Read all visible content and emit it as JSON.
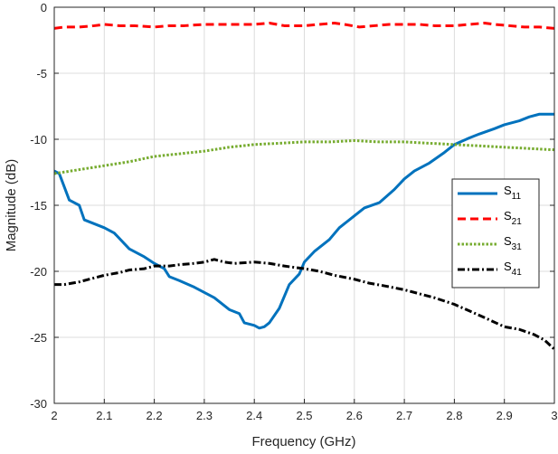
{
  "chart_data": {
    "type": "line",
    "title": "",
    "xlabel": "Frequency (GHz)",
    "ylabel": "Magnitude (dB)",
    "xlim": [
      2,
      3
    ],
    "ylim": [
      -30,
      0
    ],
    "xticks": [
      2,
      2.1,
      2.2,
      2.3,
      2.4,
      2.5,
      2.6,
      2.7,
      2.8,
      2.9,
      3
    ],
    "xtick_labels": [
      "2",
      "2.1",
      "2.2",
      "2.3",
      "2.4",
      "2.5",
      "2.6",
      "2.7",
      "2.8",
      "2.9",
      "3"
    ],
    "yticks": [
      0,
      -5,
      -10,
      -15,
      -20,
      -25,
      -30
    ],
    "ytick_labels": [
      "0",
      "-5",
      "-10",
      "-15",
      "-20",
      "-25",
      "-30"
    ],
    "grid": true,
    "legend_position": "right-middle",
    "series": [
      {
        "name": "S11",
        "label_main": "S",
        "label_sub": "11",
        "color": "#0072BD",
        "dash": "solid",
        "x": [
          2.0,
          2.01,
          2.03,
          2.05,
          2.06,
          2.1,
          2.12,
          2.15,
          2.18,
          2.2,
          2.22,
          2.23,
          2.25,
          2.28,
          2.32,
          2.35,
          2.37,
          2.38,
          2.4,
          2.41,
          2.42,
          2.43,
          2.45,
          2.47,
          2.49,
          2.5,
          2.52,
          2.55,
          2.57,
          2.6,
          2.62,
          2.65,
          2.68,
          2.7,
          2.72,
          2.75,
          2.78,
          2.8,
          2.83,
          2.85,
          2.88,
          2.9,
          2.93,
          2.95,
          2.97,
          3.0
        ],
        "y": [
          -12.4,
          -12.6,
          -14.6,
          -15.0,
          -16.1,
          -16.7,
          -17.1,
          -18.3,
          -18.9,
          -19.4,
          -19.8,
          -20.4,
          -20.7,
          -21.2,
          -22.0,
          -22.9,
          -23.2,
          -23.9,
          -24.1,
          -24.3,
          -24.2,
          -23.9,
          -22.8,
          -21.0,
          -20.2,
          -19.3,
          -18.5,
          -17.6,
          -16.7,
          -15.8,
          -15.2,
          -14.8,
          -13.8,
          -13.0,
          -12.4,
          -11.8,
          -11.0,
          -10.4,
          -9.9,
          -9.6,
          -9.2,
          -8.9,
          -8.6,
          -8.3,
          -8.1,
          -8.1
        ]
      },
      {
        "name": "S21",
        "label_main": "S",
        "label_sub": "21",
        "color": "#FF0000",
        "dash": "dashed",
        "x": [
          2.0,
          2.02,
          2.05,
          2.08,
          2.1,
          2.13,
          2.16,
          2.2,
          2.23,
          2.26,
          2.3,
          2.33,
          2.36,
          2.4,
          2.43,
          2.46,
          2.5,
          2.53,
          2.56,
          2.58,
          2.61,
          2.64,
          2.67,
          2.7,
          2.73,
          2.76,
          2.8,
          2.83,
          2.86,
          2.88,
          2.91,
          2.94,
          2.97,
          3.0
        ],
        "y": [
          -1.6,
          -1.5,
          -1.5,
          -1.4,
          -1.3,
          -1.4,
          -1.4,
          -1.5,
          -1.4,
          -1.4,
          -1.3,
          -1.3,
          -1.3,
          -1.3,
          -1.2,
          -1.4,
          -1.4,
          -1.3,
          -1.2,
          -1.3,
          -1.5,
          -1.4,
          -1.3,
          -1.3,
          -1.3,
          -1.4,
          -1.4,
          -1.3,
          -1.2,
          -1.3,
          -1.4,
          -1.5,
          -1.5,
          -1.6
        ]
      },
      {
        "name": "S31",
        "label_main": "S",
        "label_sub": "31",
        "color": "#77AC30",
        "dash": "dotted",
        "x": [
          2.0,
          2.05,
          2.1,
          2.15,
          2.2,
          2.25,
          2.3,
          2.35,
          2.4,
          2.45,
          2.5,
          2.55,
          2.6,
          2.65,
          2.7,
          2.75,
          2.8,
          2.85,
          2.9,
          2.95,
          3.0
        ],
        "y": [
          -12.6,
          -12.3,
          -12.0,
          -11.7,
          -11.3,
          -11.1,
          -10.9,
          -10.6,
          -10.4,
          -10.3,
          -10.2,
          -10.2,
          -10.1,
          -10.2,
          -10.2,
          -10.3,
          -10.4,
          -10.5,
          -10.6,
          -10.7,
          -10.8
        ]
      },
      {
        "name": "S41",
        "label_main": "S",
        "label_sub": "41",
        "color": "#000000",
        "dash": "dashdot",
        "x": [
          2.0,
          2.02,
          2.05,
          2.08,
          2.1,
          2.13,
          2.15,
          2.18,
          2.2,
          2.23,
          2.25,
          2.28,
          2.3,
          2.32,
          2.34,
          2.36,
          2.4,
          2.43,
          2.46,
          2.5,
          2.53,
          2.56,
          2.6,
          2.63,
          2.66,
          2.7,
          2.73,
          2.76,
          2.8,
          2.83,
          2.86,
          2.9,
          2.93,
          2.96,
          2.98,
          3.0
        ],
        "y": [
          -21.0,
          -21.0,
          -20.8,
          -20.5,
          -20.3,
          -20.1,
          -19.9,
          -19.8,
          -19.6,
          -19.6,
          -19.5,
          -19.4,
          -19.3,
          -19.1,
          -19.3,
          -19.4,
          -19.3,
          -19.4,
          -19.6,
          -19.8,
          -20.0,
          -20.3,
          -20.6,
          -20.9,
          -21.1,
          -21.4,
          -21.7,
          -22.0,
          -22.5,
          -23.0,
          -23.5,
          -24.2,
          -24.4,
          -24.8,
          -25.2,
          -25.9
        ]
      }
    ]
  }
}
